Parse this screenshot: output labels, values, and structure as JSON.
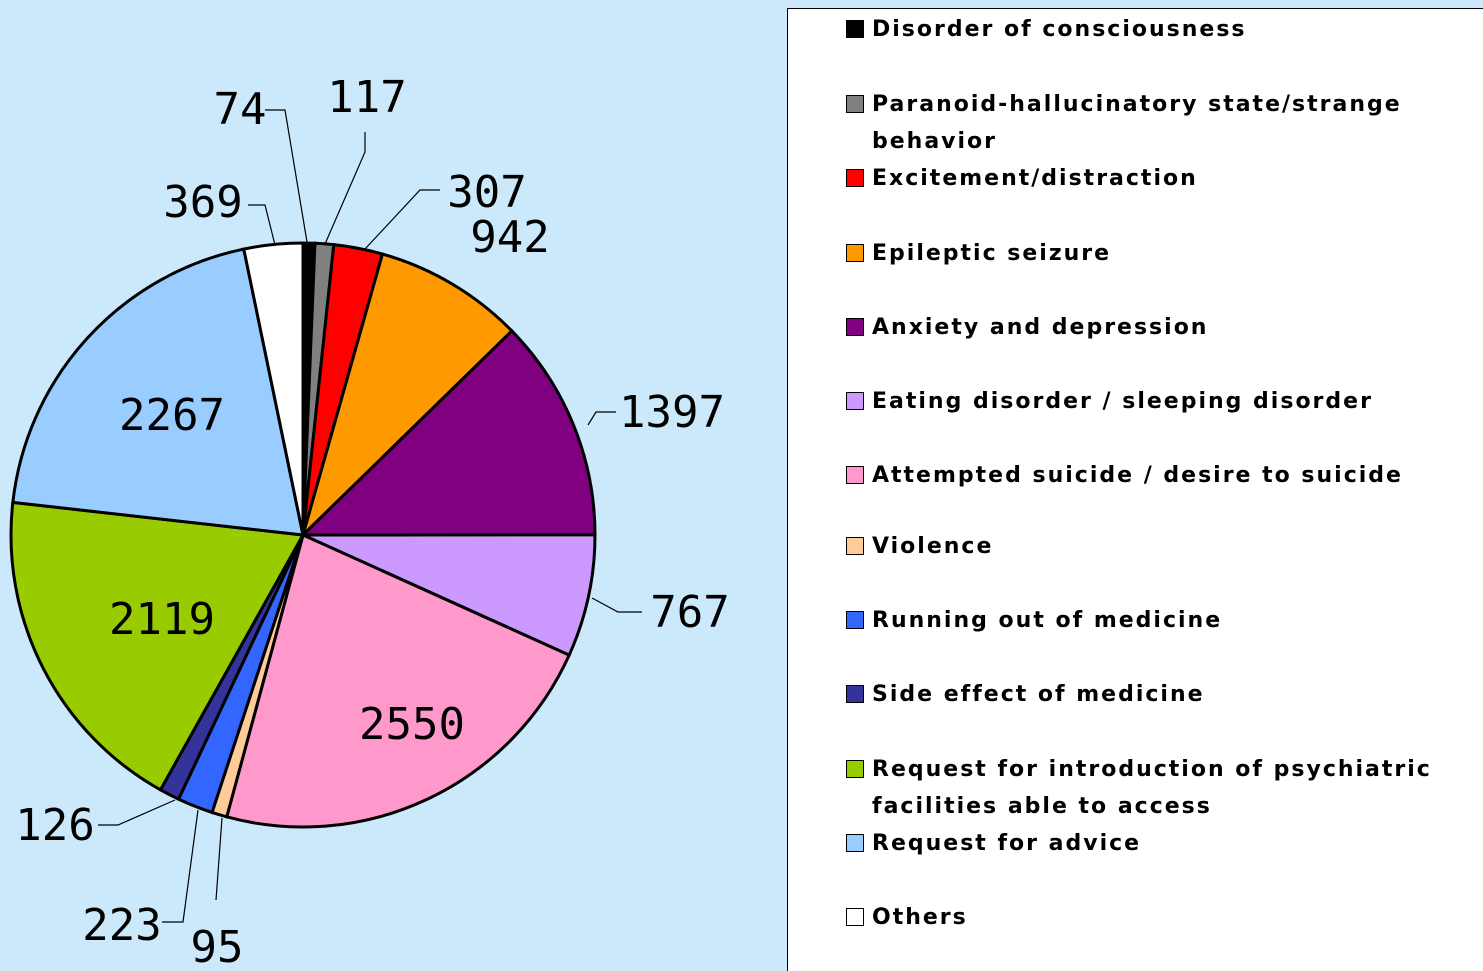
{
  "chart_data": {
    "type": "pie",
    "categories": [
      "Disorder of consciousness",
      "Paranoid-hallucinatory state/strange behavior",
      "Excitement/distraction",
      "Epileptic seizure",
      "Anxiety and depression",
      "Eating disorder / sleeping disorder",
      "Attempted suicide / desire to suicide",
      "Violence",
      "Running out of medicine",
      "Side effect of medicine",
      "Request for introduction of psychiatric facilities able to access",
      "Request for advice",
      "Others"
    ],
    "values": [
      74,
      117,
      307,
      942,
      1397,
      767,
      2550,
      95,
      223,
      126,
      2119,
      2267,
      369
    ],
    "colors": [
      "#000000",
      "#808080",
      "#ff0000",
      "#ff9900",
      "#800080",
      "#cc99ff",
      "#ff99cc",
      "#ffcc99",
      "#3366ff",
      "#333399",
      "#99cc00",
      "#99ccff",
      "#ffffff"
    ],
    "legend": "right"
  }
}
